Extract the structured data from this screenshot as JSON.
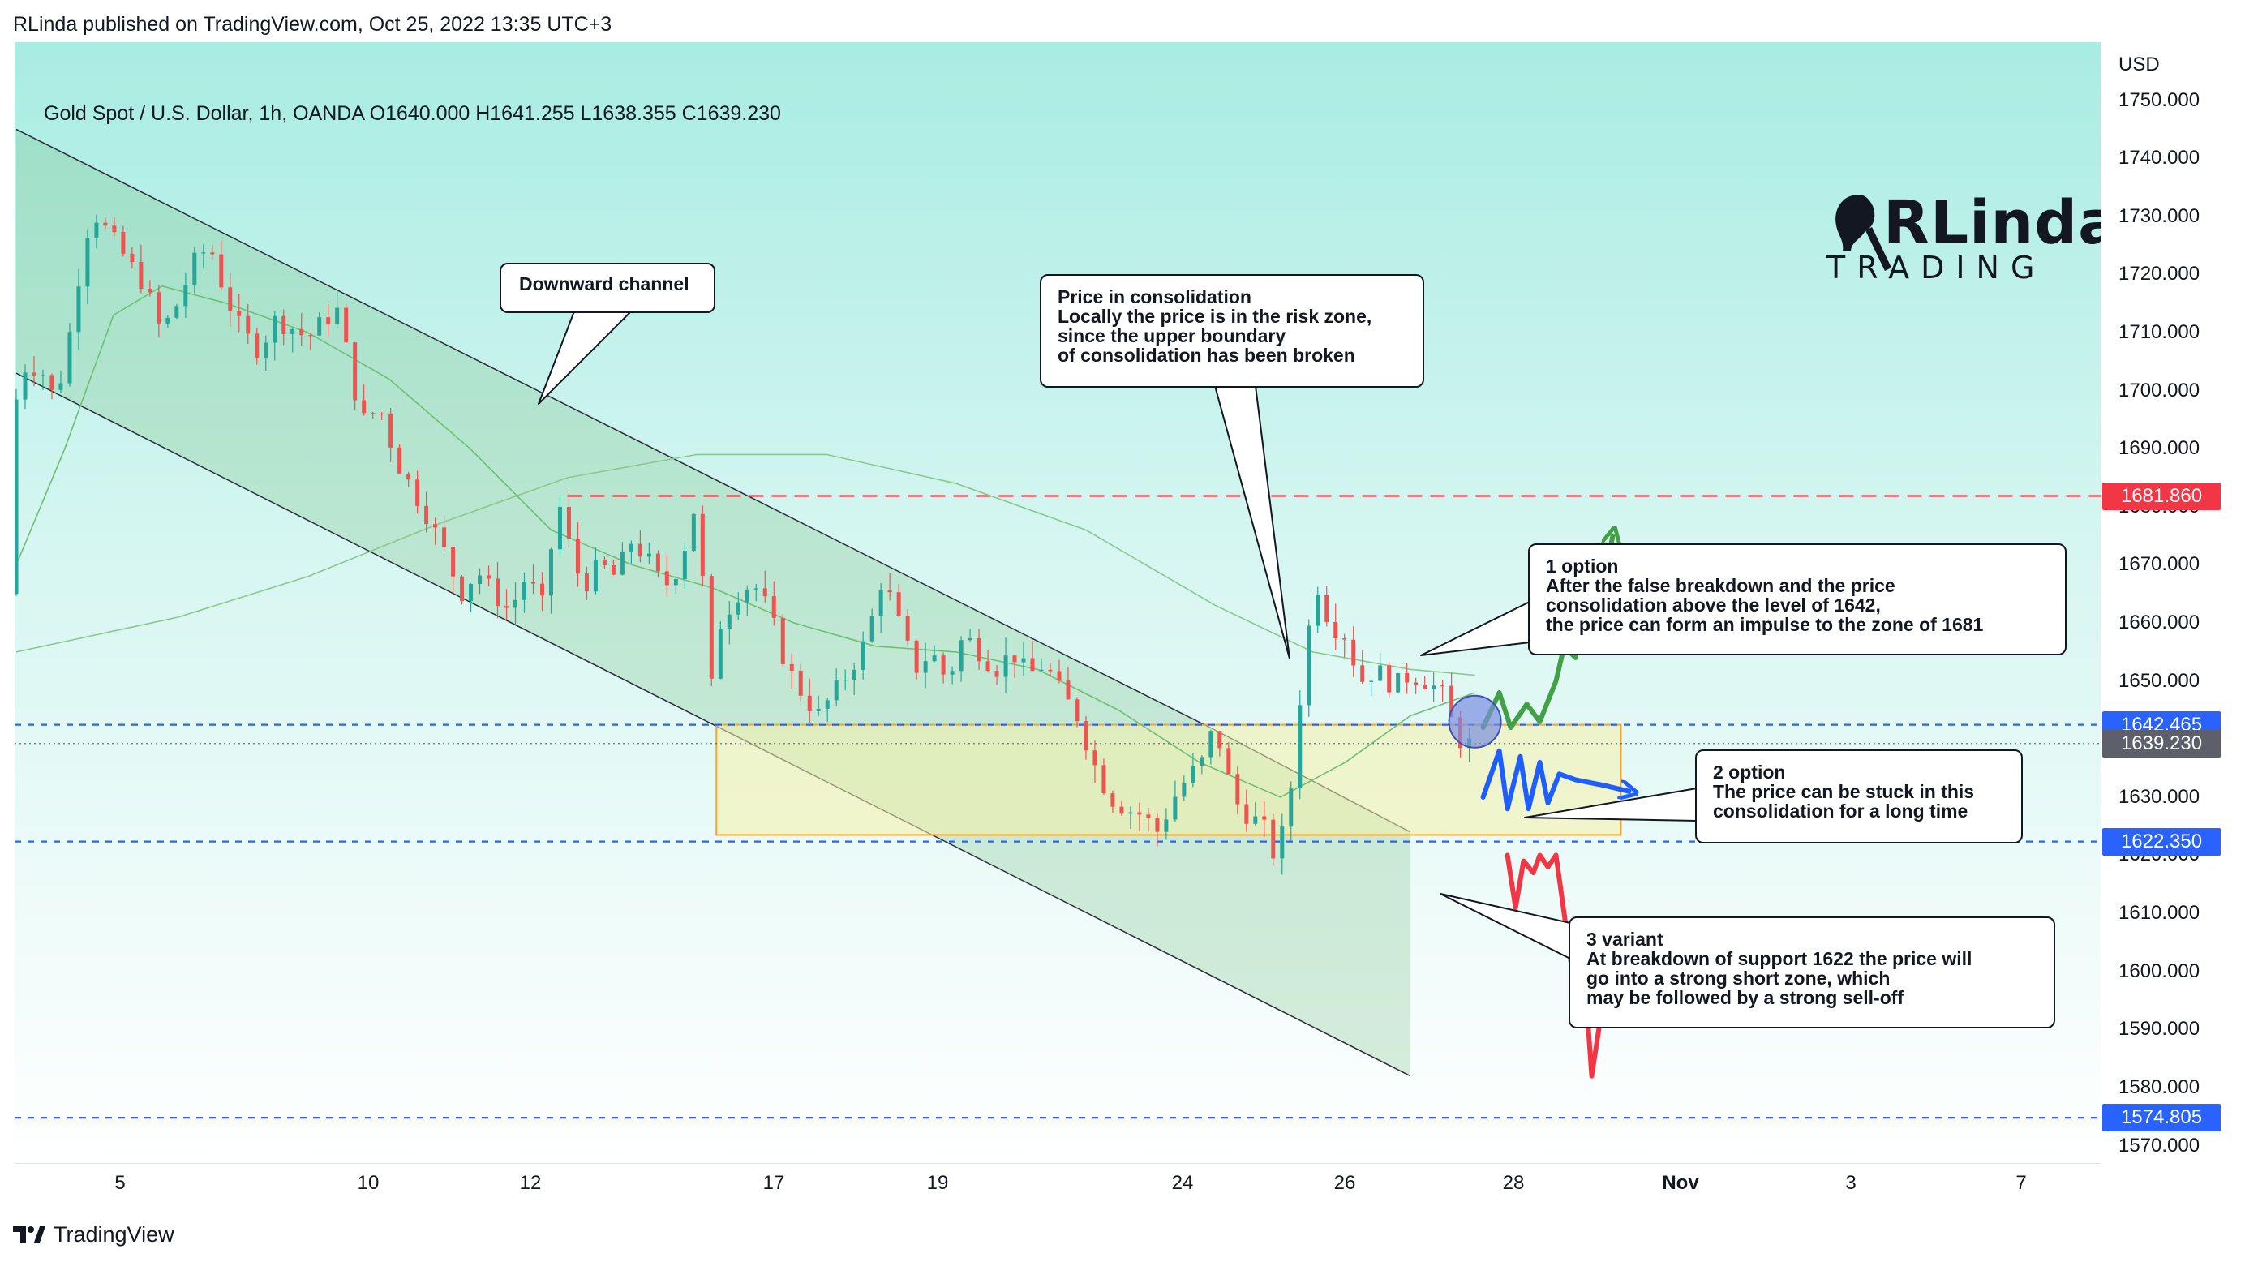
{
  "header": {
    "published_by": "RLinda published on TradingView.com, Oct 25, 2022 13:35 UTC+3"
  },
  "footer": {
    "brand": "TradingView"
  },
  "colors": {
    "bull_candle": "#26a69a",
    "bear_candle": "#ef5350",
    "resistance_red": "#f23645",
    "support_blue": "#2962ff",
    "current_price_gray": "#5d606b",
    "scenario_green": "#43a047",
    "scenario_blue": "#1e5eff",
    "scenario_red": "#f23645",
    "zone_border": "#f5a623"
  },
  "logo": {
    "name": "RLinda",
    "subtitle": "TRADING"
  },
  "chart_data": {
    "type": "candlestick",
    "title": "Gold Spot / U.S. Dollar, 1h, OANDA  O1640.000  H1641.255  L1638.355  C1639.230",
    "symbol": "Gold Spot / U.S. Dollar",
    "interval": "1h",
    "exchange": "OANDA",
    "ohlc": {
      "open": 1640.0,
      "high": 1641.255,
      "low": 1638.355,
      "close": 1639.23
    },
    "y_axis": {
      "unit": "USD",
      "range": [
        1567,
        1760
      ],
      "ticks": [
        "1750.000",
        "1740.000",
        "1730.000",
        "1720.000",
        "1710.000",
        "1700.000",
        "1690.000",
        "1680.000",
        "1670.000",
        "1660.000",
        "1650.000",
        "1640.000",
        "1630.000",
        "1620.000",
        "1610.000",
        "1600.000",
        "1590.000",
        "1580.000",
        "1570.000"
      ]
    },
    "x_axis": {
      "range_days": [
        3.0,
        8.8
      ],
      "ticks": [
        {
          "label": "5",
          "day": 5
        },
        {
          "label": "10",
          "day": 10
        },
        {
          "label": "12",
          "day": 12
        },
        {
          "label": "17",
          "day": 17
        },
        {
          "label": "19",
          "day": 19
        },
        {
          "label": "24",
          "day": 24
        },
        {
          "label": "26",
          "day": 26
        },
        {
          "label": "28",
          "day": 28
        },
        {
          "label": "Nov",
          "day": 1
        },
        {
          "label": "3",
          "day": 3
        },
        {
          "label": "7",
          "day": 7
        }
      ]
    },
    "price_path": [
      [
        0.0,
        1665
      ],
      [
        0.05,
        1698
      ],
      [
        0.12,
        1705
      ],
      [
        0.22,
        1703
      ],
      [
        0.3,
        1698
      ],
      [
        0.4,
        1712
      ],
      [
        0.48,
        1727
      ],
      [
        0.55,
        1730
      ],
      [
        0.65,
        1726
      ],
      [
        0.75,
        1722
      ],
      [
        0.85,
        1718
      ],
      [
        0.95,
        1710
      ],
      [
        1.05,
        1715
      ],
      [
        1.15,
        1722
      ],
      [
        1.25,
        1725
      ],
      [
        1.35,
        1716
      ],
      [
        1.45,
        1710
      ],
      [
        1.55,
        1707
      ],
      [
        1.65,
        1712
      ],
      [
        1.75,
        1711
      ],
      [
        1.85,
        1709
      ],
      [
        1.95,
        1712
      ],
      [
        2.05,
        1714
      ],
      [
        2.12,
        1702
      ],
      [
        2.2,
        1695
      ],
      [
        2.3,
        1697
      ],
      [
        2.4,
        1688
      ],
      [
        2.5,
        1683
      ],
      [
        2.6,
        1678
      ],
      [
        2.7,
        1672
      ],
      [
        2.8,
        1665
      ],
      [
        2.9,
        1669
      ],
      [
        3.0,
        1665
      ],
      [
        3.1,
        1662
      ],
      [
        3.2,
        1668
      ],
      [
        3.3,
        1663
      ],
      [
        3.4,
        1681
      ],
      [
        3.45,
        1675
      ],
      [
        3.55,
        1666
      ],
      [
        3.65,
        1670
      ],
      [
        3.75,
        1668
      ],
      [
        3.85,
        1674
      ],
      [
        3.95,
        1671
      ],
      [
        4.05,
        1666
      ],
      [
        4.15,
        1670
      ],
      [
        4.25,
        1681
      ],
      [
        4.28,
        1675
      ],
      [
        4.32,
        1644
      ],
      [
        4.4,
        1660
      ],
      [
        4.5,
        1665
      ],
      [
        4.6,
        1667
      ],
      [
        4.7,
        1662
      ],
      [
        4.8,
        1653
      ],
      [
        4.9,
        1648
      ],
      [
        5.0,
        1644
      ],
      [
        5.1,
        1648
      ],
      [
        5.2,
        1652
      ],
      [
        5.3,
        1657
      ],
      [
        5.4,
        1668
      ],
      [
        5.5,
        1660
      ],
      [
        5.6,
        1652
      ],
      [
        5.7,
        1655
      ],
      [
        5.8,
        1650
      ],
      [
        5.9,
        1658
      ],
      [
        6.0,
        1655
      ],
      [
        6.1,
        1652
      ],
      [
        6.2,
        1655
      ],
      [
        6.3,
        1651
      ],
      [
        6.4,
        1653
      ],
      [
        6.5,
        1648
      ],
      [
        6.6,
        1644
      ],
      [
        6.7,
        1636
      ],
      [
        6.8,
        1630
      ],
      [
        6.9,
        1628
      ],
      [
        7.0,
        1627
      ],
      [
        7.1,
        1624
      ],
      [
        7.2,
        1630
      ],
      [
        7.3,
        1634
      ],
      [
        7.4,
        1637
      ],
      [
        7.45,
        1644
      ],
      [
        7.5,
        1636
      ],
      [
        7.6,
        1628
      ],
      [
        7.7,
        1626
      ],
      [
        7.75,
        1625
      ],
      [
        7.8,
        1620
      ],
      [
        7.85,
        1622
      ],
      [
        7.9,
        1627
      ],
      [
        7.95,
        1639
      ],
      [
        8.0,
        1655
      ],
      [
        8.05,
        1662
      ],
      [
        8.1,
        1668
      ],
      [
        8.15,
        1660
      ],
      [
        8.25,
        1658
      ],
      [
        8.35,
        1650
      ],
      [
        8.45,
        1652
      ],
      [
        8.55,
        1649
      ],
      [
        8.65,
        1651
      ],
      [
        8.75,
        1650
      ],
      [
        8.85,
        1648
      ],
      [
        8.95,
        1640
      ],
      [
        9.0,
        1639.23
      ]
    ],
    "moving_averages": [
      {
        "points": [
          [
            0.0,
            1670
          ],
          [
            0.3,
            1690
          ],
          [
            0.6,
            1713
          ],
          [
            0.9,
            1718
          ],
          [
            1.3,
            1715
          ],
          [
            1.8,
            1710
          ],
          [
            2.3,
            1702
          ],
          [
            2.8,
            1690
          ],
          [
            3.3,
            1676
          ],
          [
            3.8,
            1670
          ],
          [
            4.3,
            1666
          ],
          [
            4.8,
            1660
          ],
          [
            5.3,
            1656
          ],
          [
            5.8,
            1655
          ],
          [
            6.3,
            1652
          ],
          [
            6.8,
            1645
          ],
          [
            7.3,
            1636
          ],
          [
            7.8,
            1630
          ],
          [
            8.2,
            1636
          ],
          [
            8.6,
            1644
          ],
          [
            9.0,
            1648
          ]
        ]
      },
      {
        "points": [
          [
            0.0,
            1655
          ],
          [
            1.0,
            1661
          ],
          [
            1.8,
            1668
          ],
          [
            2.6,
            1677
          ],
          [
            3.4,
            1685
          ],
          [
            4.2,
            1689
          ],
          [
            5.0,
            1689
          ],
          [
            5.8,
            1684
          ],
          [
            6.6,
            1676
          ],
          [
            7.4,
            1663
          ],
          [
            8.0,
            1655
          ],
          [
            8.6,
            1652
          ],
          [
            9.0,
            1651
          ]
        ]
      }
    ],
    "levels": [
      {
        "label": "1681.860",
        "price": 1681.86,
        "style": "dashed",
        "color": "#f23645"
      },
      {
        "label": "1642.465",
        "price": 1642.465,
        "style": "dashed",
        "color": "#2962ff"
      },
      {
        "label": "1639.230",
        "price": 1639.23,
        "style": "dotted",
        "color": "#5d606b"
      },
      {
        "label": "1622.350",
        "price": 1622.35,
        "style": "dashed",
        "color": "#2962ff"
      },
      {
        "label": "1574.805",
        "price": 1574.805,
        "style": "dashed",
        "color": "#2962ff"
      }
    ],
    "channel": {
      "upper": [
        [
          0.0,
          1745
        ],
        [
          7.4,
          1641.5
        ],
        [
          8.6,
          1624
        ]
      ],
      "lower": [
        [
          0.0,
          1703
        ],
        [
          8.6,
          1582
        ]
      ]
    },
    "consolidation_zone": {
      "x0": 4.32,
      "x1": 9.9,
      "price_top": 1642.465,
      "price_bottom": 1623.5
    },
    "scenarios": [
      {
        "name": "1 option",
        "points": [
          [
            9.05,
            1642
          ],
          [
            9.15,
            1648
          ],
          [
            9.22,
            1642
          ],
          [
            9.32,
            1646
          ],
          [
            9.4,
            1643
          ],
          [
            9.5,
            1650
          ],
          [
            9.55,
            1656
          ],
          [
            9.62,
            1654
          ],
          [
            9.68,
            1664
          ],
          [
            9.75,
            1671
          ],
          [
            9.78,
            1666
          ],
          [
            9.85,
            1675
          ]
        ]
      },
      {
        "name": "2 option",
        "points": [
          [
            9.05,
            1630
          ],
          [
            9.15,
            1638
          ],
          [
            9.2,
            1628
          ],
          [
            9.28,
            1637
          ],
          [
            9.33,
            1628
          ],
          [
            9.4,
            1636
          ],
          [
            9.45,
            1629
          ],
          [
            9.52,
            1634
          ],
          [
            9.62,
            1633
          ],
          [
            9.8,
            1632
          ],
          [
            9.95,
            1631
          ]
        ]
      },
      {
        "name": "3 variant",
        "points": [
          [
            9.2,
            1620
          ],
          [
            9.25,
            1611
          ],
          [
            9.3,
            1619
          ],
          [
            9.36,
            1617
          ],
          [
            9.4,
            1620
          ],
          [
            9.45,
            1618
          ],
          [
            9.5,
            1620
          ],
          [
            9.53,
            1614
          ],
          [
            9.6,
            1600
          ],
          [
            9.64,
            1608
          ],
          [
            9.7,
            1590
          ],
          [
            9.72,
            1582
          ],
          [
            9.78,
            1593
          ]
        ]
      }
    ]
  },
  "callouts": {
    "downward_channel": {
      "lines": [
        "Downward channel"
      ]
    },
    "consolidation": {
      "lines": [
        "Price in consolidation",
        "Locally the price is in the risk zone,",
        "since the upper boundary",
        "of consolidation has been broken"
      ]
    },
    "option1": {
      "lines": [
        "1 option",
        "After the false breakdown and the price",
        "consolidation above the level of 1642,",
        "the price can form an impulse to the zone of 1681"
      ]
    },
    "option2": {
      "lines": [
        "2 option",
        "The price can be stuck in this",
        "consolidation for a long time"
      ]
    },
    "option3": {
      "lines": [
        "3 variant",
        "At breakdown of support 1622 the price will",
        "go into a strong short zone, which",
        "may be followed by a strong sell-off"
      ]
    }
  }
}
